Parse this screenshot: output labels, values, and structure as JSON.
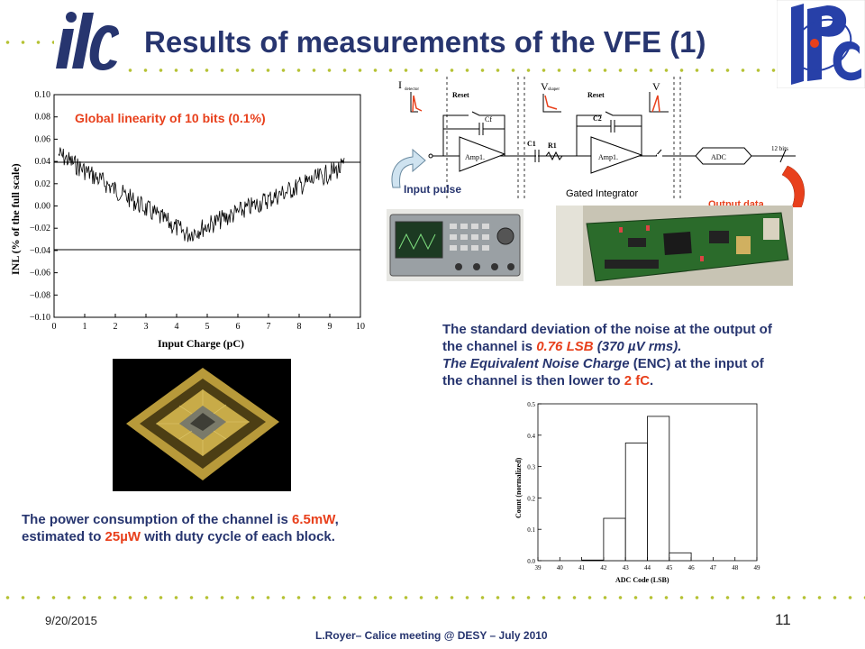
{
  "slide": {
    "title": "Results of measurements of the VFE (1)",
    "date": "9/20/2015",
    "page_number": "11",
    "footer_text": "L.Royer– Calice meeting @ DESY – July 2010",
    "accent_color": "#b6c235",
    "title_color": "#27356f",
    "highlight_color": "#e8401c"
  },
  "logos": {
    "left_text": "ilc",
    "right_text": "LPC"
  },
  "inl_plot": {
    "annotation": "Global linearity of 10 bits (0.1%)",
    "ylabel": "INL (% of the full scale)",
    "xlabel": "Input Charge (pC)",
    "yticks": [
      "0.10",
      "0.08",
      "0.06",
      "0.04",
      "0.02",
      "0.00",
      "−0.02",
      "−0.04",
      "−0.06",
      "−0.08",
      "−0.10"
    ],
    "xticks": [
      "0",
      "1",
      "2",
      "3",
      "4",
      "5",
      "6",
      "7",
      "8",
      "9",
      "10"
    ]
  },
  "schematic": {
    "labels": {
      "input_current": "I",
      "input_sub": "detector",
      "reset1": "Reset",
      "c_f": "Cf",
      "amp1": "Amp1.",
      "v1": "V",
      "v1_sub": "shaper",
      "c1": "C1",
      "r1": "R1",
      "reset2": "Reset",
      "c2": "C2",
      "amp2": "Amp1.",
      "v2": "V",
      "adc": "ADC",
      "bits": "12 bits",
      "gated": "Gated Integrator",
      "input_pulse": "Input pulse",
      "output_data": "Output data"
    }
  },
  "power_note": {
    "line1_a": "The power consumption of the channel is ",
    "line1_hl": "6.5mW",
    "line1_b": ",",
    "line2_a": "estimated to ",
    "line2_hl": "25µW",
    "line2_b": " with duty cycle of each block."
  },
  "noise_note": {
    "l1": "The standard deviation of the noise at the output of",
    "l2_a": "the channel is ",
    "l2_hl": "0.76 LSB",
    "l2_b": " (370 µV rms).",
    "l3_a": "The Equivalent Noise Charge",
    "l3_b": " (ENC) at the input of",
    "l4_a": "the channel is then lower to ",
    "l4_hl": "2 fC",
    "l4_b": "."
  },
  "chart_data": {
    "type": "bar",
    "xlabel": "ADC Code (LSB)",
    "ylabel": "Count (normalized)",
    "categories": [
      41,
      42,
      43,
      44,
      45
    ],
    "values": [
      0.002,
      0.135,
      0.375,
      0.46,
      0.025
    ],
    "xlim": [
      39,
      49
    ],
    "ylim": [
      0,
      0.5
    ],
    "xticks": [
      "39",
      "40",
      "41",
      "42",
      "43",
      "44",
      "45",
      "46",
      "47",
      "48",
      "49"
    ],
    "yticks": [
      "0.0",
      "0.1",
      "0.2",
      "0.3",
      "0.4",
      "0.5"
    ]
  }
}
